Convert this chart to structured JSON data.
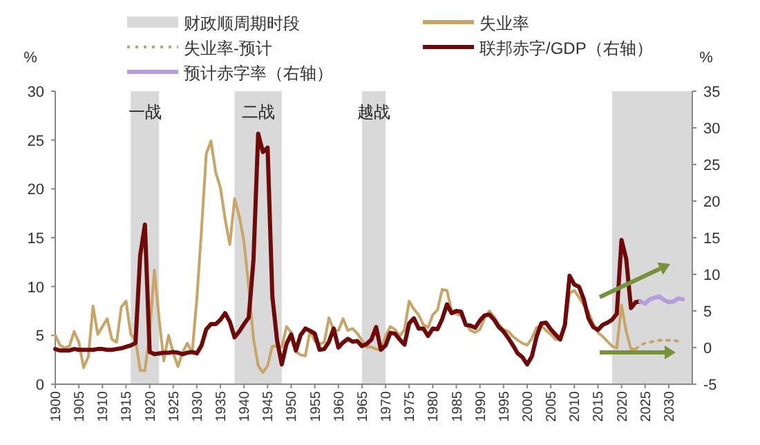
{
  "chart_data": {
    "type": "line",
    "ylabel": "%",
    "y2label": "%",
    "xlim": [
      1900,
      2035
    ],
    "xticks": [
      1900,
      1905,
      1910,
      1915,
      1920,
      1925,
      1930,
      1935,
      1940,
      1945,
      1950,
      1955,
      1960,
      1965,
      1970,
      1975,
      1980,
      1985,
      1990,
      1995,
      2000,
      2005,
      2010,
      2015,
      2020,
      2025,
      2030
    ],
    "ylim": [
      0,
      30
    ],
    "yticks": [
      0,
      5,
      10,
      15,
      20,
      25,
      30
    ],
    "y2lim": [
      -5,
      35
    ],
    "y2ticks": [
      -5,
      0,
      5,
      10,
      15,
      20,
      25,
      30,
      35
    ],
    "grid": false,
    "legend": "top",
    "line_style": "solid",
    "marker": "none",
    "bands": [
      {
        "axis": "x",
        "from": 1916,
        "to": 1922,
        "label": "一战",
        "color": "#d9d9d9"
      },
      {
        "axis": "x",
        "from": 1938,
        "to": 1948,
        "label": "二战",
        "color": "#d9d9d9"
      },
      {
        "axis": "x",
        "from": 1965,
        "to": 1970,
        "label": "越战",
        "color": "#d9d9d9"
      },
      {
        "axis": "x",
        "from": 2018,
        "to": 2035,
        "color": "#d9d9d9"
      }
    ],
    "annotations": [
      "财政顺周期时段"
    ],
    "series": [
      {
        "name": "失业率",
        "color": "#c9a467",
        "axis": "y",
        "x": [
          1900,
          1901,
          1902,
          1903,
          1904,
          1905,
          1906,
          1907,
          1908,
          1909,
          1910,
          1911,
          1912,
          1913,
          1914,
          1915,
          1916,
          1917,
          1918,
          1919,
          1920,
          1921,
          1922,
          1923,
          1924,
          1925,
          1926,
          1927,
          1928,
          1929,
          1930,
          1931,
          1932,
          1933,
          1934,
          1935,
          1936,
          1937,
          1938,
          1939,
          1940,
          1941,
          1942,
          1943,
          1944,
          1945,
          1946,
          1947,
          1948,
          1949,
          1950,
          1951,
          1952,
          1953,
          1954,
          1955,
          1956,
          1957,
          1958,
          1959,
          1960,
          1961,
          1962,
          1963,
          1964,
          1965,
          1966,
          1967,
          1968,
          1969,
          1970,
          1971,
          1972,
          1973,
          1974,
          1975,
          1976,
          1977,
          1978,
          1979,
          1980,
          1981,
          1982,
          1983,
          1984,
          1985,
          1986,
          1987,
          1988,
          1989,
          1990,
          1991,
          1992,
          1993,
          1994,
          1995,
          1996,
          1997,
          1998,
          1999,
          2000,
          2001,
          2002,
          2003,
          2004,
          2005,
          2006,
          2007,
          2008,
          2009,
          2010,
          2011,
          2012,
          2013,
          2014,
          2015,
          2016,
          2017,
          2018,
          2019,
          2020,
          2021,
          2022,
          2023
        ],
        "values": [
          5.0,
          4.0,
          3.7,
          3.9,
          5.4,
          4.3,
          1.7,
          2.8,
          8.0,
          5.1,
          5.9,
          6.7,
          4.6,
          4.3,
          7.9,
          8.5,
          5.1,
          4.6,
          1.4,
          1.4,
          5.2,
          11.7,
          6.7,
          2.4,
          5.0,
          3.2,
          1.8,
          3.3,
          4.2,
          3.2,
          8.7,
          15.9,
          23.6,
          24.9,
          21.7,
          20.1,
          16.9,
          14.3,
          19.0,
          17.2,
          14.6,
          9.9,
          4.7,
          1.9,
          1.2,
          1.9,
          3.9,
          3.9,
          3.8,
          5.9,
          5.3,
          3.3,
          3.0,
          2.9,
          5.5,
          4.4,
          4.1,
          4.3,
          6.8,
          5.5,
          5.5,
          6.7,
          5.5,
          5.7,
          5.2,
          4.5,
          3.8,
          3.8,
          3.6,
          3.5,
          4.9,
          5.9,
          5.6,
          4.9,
          5.6,
          8.5,
          7.7,
          7.1,
          6.1,
          5.8,
          7.1,
          7.6,
          9.7,
          9.6,
          7.5,
          7.2,
          7.0,
          6.2,
          5.5,
          5.3,
          5.6,
          6.8,
          7.5,
          6.9,
          6.1,
          5.6,
          5.4,
          4.9,
          4.5,
          4.2,
          4.0,
          4.7,
          5.8,
          6.0,
          5.5,
          5.1,
          4.6,
          4.6,
          5.8,
          9.3,
          9.6,
          8.9,
          8.1,
          7.4,
          6.2,
          5.3,
          4.9,
          4.4,
          3.9,
          3.7,
          8.1,
          5.4,
          3.6,
          3.6
        ]
      },
      {
        "name": "失业率-预计",
        "color": "#c9a467",
        "axis": "y",
        "line_style": "dotted",
        "x": [
          2023,
          2024,
          2025,
          2026,
          2027,
          2028,
          2029,
          2030,
          2031,
          2032,
          2033
        ],
        "values": [
          3.6,
          4.0,
          4.2,
          4.3,
          4.4,
          4.5,
          4.5,
          4.5,
          4.5,
          4.4,
          4.4
        ]
      },
      {
        "name": "联邦赤字/GDP（右轴）",
        "color": "#6e0a0a",
        "axis": "y2",
        "x": [
          1900,
          1901,
          1902,
          1903,
          1904,
          1905,
          1906,
          1907,
          1908,
          1909,
          1910,
          1911,
          1912,
          1913,
          1914,
          1915,
          1916,
          1917,
          1918,
          1919,
          1920,
          1921,
          1922,
          1923,
          1924,
          1925,
          1926,
          1927,
          1928,
          1929,
          1930,
          1931,
          1932,
          1933,
          1934,
          1935,
          1936,
          1937,
          1938,
          1939,
          1940,
          1941,
          1942,
          1943,
          1944,
          1945,
          1946,
          1947,
          1948,
          1949,
          1950,
          1951,
          1952,
          1953,
          1954,
          1955,
          1956,
          1957,
          1958,
          1959,
          1960,
          1961,
          1962,
          1963,
          1964,
          1965,
          1966,
          1967,
          1968,
          1969,
          1970,
          1971,
          1972,
          1973,
          1974,
          1975,
          1976,
          1977,
          1978,
          1979,
          1980,
          1981,
          1982,
          1983,
          1984,
          1985,
          1986,
          1987,
          1988,
          1989,
          1990,
          1991,
          1992,
          1993,
          1994,
          1995,
          1996,
          1997,
          1998,
          1999,
          2000,
          2001,
          2002,
          2003,
          2004,
          2005,
          2006,
          2007,
          2008,
          2009,
          2010,
          2011,
          2012,
          2013,
          2014,
          2015,
          2016,
          2017,
          2018,
          2019,
          2020,
          2021,
          2022,
          2023,
          2024
        ],
        "values": [
          -0.2,
          -0.4,
          -0.4,
          -0.4,
          -0.2,
          -0.3,
          -0.3,
          -0.3,
          -0.3,
          -0.2,
          -0.2,
          -0.3,
          -0.3,
          -0.2,
          -0.1,
          0.1,
          0.3,
          0.6,
          12.6,
          16.8,
          -0.6,
          -0.9,
          -0.8,
          -0.7,
          -0.7,
          -0.6,
          -0.7,
          -0.9,
          -0.7,
          -0.6,
          -0.8,
          0.3,
          2.5,
          3.2,
          3.2,
          3.8,
          4.7,
          3.5,
          1.4,
          2.2,
          3.2,
          4.1,
          11.9,
          29.2,
          26.7,
          27.3,
          7.0,
          1.0,
          -2.3,
          0.5,
          1.8,
          -0.4,
          1.7,
          2.6,
          2.3,
          1.9,
          -0.3,
          -0.2,
          0.8,
          2.6,
          0.0,
          0.7,
          1.2,
          0.8,
          0.9,
          0.2,
          0.5,
          1.1,
          2.8,
          -0.3,
          0.3,
          2.0,
          1.9,
          1.1,
          0.4,
          3.3,
          4.0,
          2.6,
          2.6,
          1.6,
          2.6,
          2.5,
          3.9,
          5.9,
          4.7,
          5.0,
          4.9,
          3.1,
          3.0,
          2.7,
          3.7,
          4.4,
          4.5,
          3.8,
          2.8,
          2.2,
          1.3,
          0.3,
          -0.8,
          -1.3,
          -2.3,
          -1.2,
          1.5,
          3.3,
          3.4,
          2.5,
          1.8,
          1.1,
          3.1,
          9.8,
          8.6,
          8.3,
          6.6,
          4.0,
          2.8,
          2.4,
          3.1,
          3.4,
          3.8,
          4.6,
          14.7,
          12.1,
          5.4,
          6.2,
          6.3
        ]
      },
      {
        "name": "预计赤字率（右轴）",
        "color": "#b39ddb",
        "axis": "y2",
        "x": [
          2024,
          2025,
          2026,
          2027,
          2028,
          2029,
          2030,
          2031,
          2032,
          2033
        ],
        "values": [
          6.3,
          6.0,
          6.6,
          6.8,
          7.0,
          6.5,
          6.2,
          6.3,
          6.7,
          6.6
        ]
      }
    ]
  }
}
